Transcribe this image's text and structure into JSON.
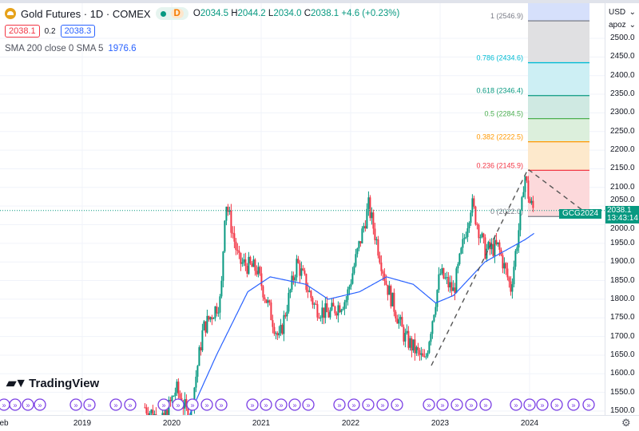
{
  "header": {
    "symbol": "Gold Futures · 1D · COMEX",
    "interval_badge": "D",
    "open_label": "O",
    "open": "2034.5",
    "high_label": "H",
    "high": "2044.2",
    "low_label": "L",
    "low": "2034.0",
    "close_label": "C",
    "close": "2038.1",
    "change": "+4.6 (+0.23%)"
  },
  "order": {
    "sell": "2038.1",
    "spread": "0.2",
    "buy": "2038.3"
  },
  "indicator": {
    "label": "SMA 200 close 0 SMA 5",
    "value": "1976.6"
  },
  "price_axis": {
    "currency": "USD",
    "unit": "apoz",
    "ticks": [
      "2500.0",
      "2450.0",
      "2400.0",
      "2350.0",
      "2300.0",
      "2250.0",
      "2200.0",
      "2150.0",
      "2100.0",
      "2050.0",
      "2000.0",
      "1950.0",
      "1900.0",
      "1850.0",
      "1800.0",
      "1750.0",
      "1700.0",
      "1650.0",
      "1600.0",
      "1550.0",
      "1500.0"
    ]
  },
  "time_axis": {
    "ticks": [
      "eb",
      "2019",
      "2020",
      "2021",
      "2022",
      "2023",
      "2024"
    ]
  },
  "current": {
    "symbol_tag": "GCG2024",
    "price": "2038.1",
    "countdown": "13:43:14"
  },
  "fib": [
    {
      "label": "1 (2546.9)",
      "price": 2546.9,
      "color": "#787b86",
      "fill": "#e0e0e2"
    },
    {
      "label": "0.786 (2434.6)",
      "price": 2434.6,
      "color": "#00bcd4",
      "fill": "#cdeff4"
    },
    {
      "label": "0.618 (2346.4)",
      "price": 2346.4,
      "color": "#089981",
      "fill": "#cfe9e2"
    },
    {
      "label": "0.5 (2284.5)",
      "price": 2284.5,
      "color": "#4caf50",
      "fill": "#dcefdc"
    },
    {
      "label": "0.382 (2222.5)",
      "price": 2222.5,
      "color": "#ff9800",
      "fill": "#fde9cc"
    },
    {
      "label": "0.236 (2145.9)",
      "price": 2145.9,
      "color": "#f23645",
      "fill": "#fcd9db"
    },
    {
      "label": "0 (2022.0)",
      "price": 2022.0,
      "color": "#787b86",
      "fill": "#fcd9db"
    }
  ],
  "brand": "TradingView",
  "chart_data": {
    "type": "candlestick",
    "ylim": [
      1490,
      2600
    ],
    "price_path": [
      [
        2019.7,
        1510
      ],
      [
        2019.9,
        1470
      ],
      [
        2020.05,
        1560
      ],
      [
        2020.2,
        1480
      ],
      [
        2020.35,
        1720
      ],
      [
        2020.55,
        1800
      ],
      [
        2020.6,
        2070
      ],
      [
        2020.75,
        1900
      ],
      [
        2020.95,
        1880
      ],
      [
        2021.2,
        1690
      ],
      [
        2021.4,
        1900
      ],
      [
        2021.6,
        1780
      ],
      [
        2021.75,
        1760
      ],
      [
        2021.95,
        1800
      ],
      [
        2022.2,
        2050
      ],
      [
        2022.4,
        1840
      ],
      [
        2022.6,
        1700
      ],
      [
        2022.83,
        1630
      ],
      [
        2023.0,
        1870
      ],
      [
        2023.15,
        1820
      ],
      [
        2023.35,
        2060
      ],
      [
        2023.5,
        1930
      ],
      [
        2023.65,
        1940
      ],
      [
        2023.79,
        1830
      ],
      [
        2023.92,
        2060
      ],
      [
        2023.94,
        2145
      ],
      [
        2024.0,
        2060
      ],
      [
        2024.05,
        2038
      ]
    ],
    "sma_path": [
      [
        2020.2,
        1490
      ],
      [
        2020.5,
        1650
      ],
      [
        2020.85,
        1820
      ],
      [
        2021.1,
        1860
      ],
      [
        2021.5,
        1840
      ],
      [
        2021.75,
        1800
      ],
      [
        2022.1,
        1820
      ],
      [
        2022.4,
        1860
      ],
      [
        2022.7,
        1840
      ],
      [
        2022.95,
        1790
      ],
      [
        2023.15,
        1810
      ],
      [
        2023.5,
        1900
      ],
      [
        2023.8,
        1940
      ],
      [
        2023.95,
        1960
      ],
      [
        2024.05,
        1976.6
      ]
    ]
  }
}
